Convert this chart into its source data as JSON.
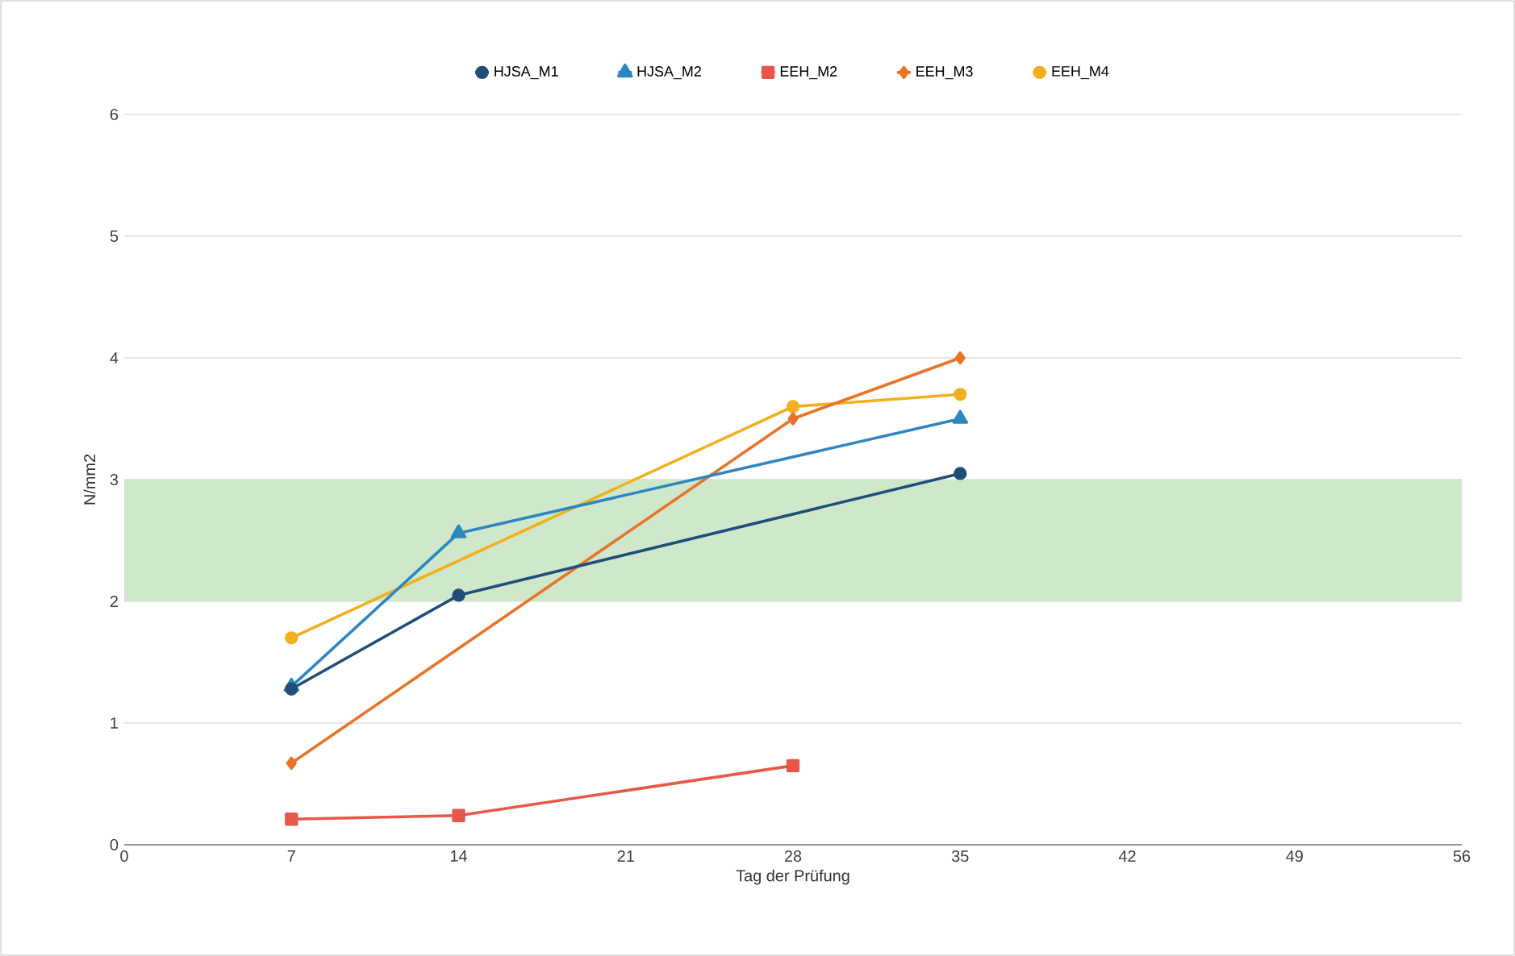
{
  "chart_data": {
    "type": "line",
    "xlabel": "Tag der Prüfung",
    "ylabel": "N/mm2",
    "xlim": [
      0,
      56
    ],
    "xticks": [
      0,
      7,
      14,
      21,
      28,
      35,
      42,
      49,
      56
    ],
    "ylim": [
      0,
      6
    ],
    "yticks": [
      0,
      1,
      2,
      3,
      4,
      5,
      6
    ],
    "grid": "y",
    "legend": "top",
    "bands": [
      {
        "axis": "y",
        "from": 2,
        "to": 3,
        "color": "#cfe8cc"
      }
    ],
    "series": [
      {
        "name": "HJSA_M1",
        "color": "#1f4e79",
        "marker": "circle",
        "x": [
          7,
          14,
          35
        ],
        "values": [
          1.28,
          2.05,
          3.05
        ]
      },
      {
        "name": "HJSA_M2",
        "color": "#2e86c1",
        "marker": "triangle",
        "x": [
          7,
          14,
          35
        ],
        "values": [
          1.3,
          2.56,
          3.5
        ]
      },
      {
        "name": "EEH_M2",
        "color": "#e8584a",
        "marker": "square",
        "x": [
          7,
          14,
          28
        ],
        "values": [
          0.21,
          0.24,
          0.65
        ]
      },
      {
        "name": "EEH_M3",
        "color": "#e8742a",
        "marker": "diamond",
        "x": [
          7,
          28,
          35
        ],
        "values": [
          0.67,
          3.5,
          4.0
        ]
      },
      {
        "name": "EEH_M4",
        "color": "#f2b01e",
        "marker": "circle",
        "x": [
          7,
          28,
          35
        ],
        "values": [
          1.7,
          3.6,
          3.7
        ]
      }
    ]
  }
}
